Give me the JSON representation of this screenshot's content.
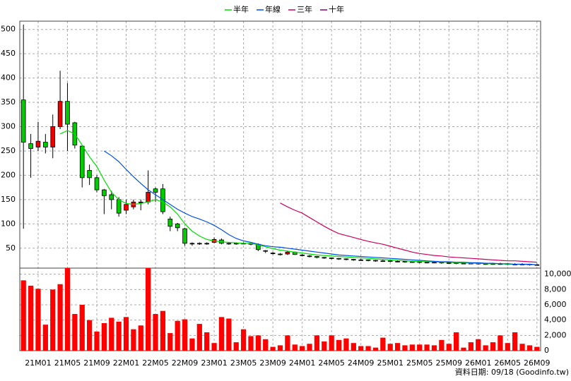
{
  "chart_data": {
    "type": "candlestick",
    "source": "資料日期: 09/18  (Goodinfo.tw)",
    "categories": [
      null,
      null,
      "21M01",
      null,
      null,
      null,
      "21M05",
      null,
      null,
      null,
      "21M09",
      null,
      null,
      null,
      "22M01",
      null,
      null,
      null,
      "22M05",
      null,
      null,
      null,
      "22M09",
      null,
      null,
      null,
      "23M01",
      null,
      null,
      null,
      "23M05",
      null,
      null,
      null,
      "23M09",
      null,
      null,
      null,
      "24M01",
      null,
      null,
      null,
      "24M05",
      null,
      null,
      null,
      "24M09",
      null,
      null,
      null,
      "25M01",
      null,
      null,
      null,
      "25M05",
      null,
      null,
      null,
      "25M09",
      null,
      null,
      null,
      "26M01",
      null,
      null,
      null,
      "26M05",
      null,
      null,
      null,
      "26M09"
    ],
    "open": [
      355,
      265,
      258,
      268,
      258,
      300,
      352,
      308,
      260,
      210,
      195,
      170,
      160,
      150,
      128,
      135,
      145,
      145,
      172,
      172,
      110,
      100,
      90,
      60,
      60,
      60,
      62,
      67,
      60,
      60,
      60,
      60,
      58,
      45,
      40,
      38,
      38,
      42,
      36,
      34,
      33,
      31,
      30,
      29,
      28,
      27,
      26,
      26,
      25,
      24,
      24,
      23,
      23,
      22,
      22,
      21,
      21,
      21,
      20,
      20,
      19,
      19,
      19,
      18,
      18,
      18,
      18,
      17,
      17,
      17,
      16
    ],
    "high": [
      510,
      285,
      310,
      285,
      325,
      415,
      390,
      310,
      262,
      222,
      200,
      172,
      168,
      155,
      150,
      150,
      150,
      210,
      175,
      182,
      115,
      102,
      92,
      62,
      62,
      62,
      72,
      70,
      62,
      62,
      62,
      60,
      60,
      46,
      42,
      40,
      45,
      43,
      38,
      36,
      34,
      32,
      31,
      30,
      29,
      28,
      28,
      27,
      26,
      26,
      25,
      25,
      24,
      24,
      23,
      23,
      23,
      22,
      22,
      21,
      21,
      21,
      20,
      20,
      20,
      20,
      19,
      19,
      19,
      18,
      18
    ],
    "low": [
      90,
      195,
      250,
      245,
      235,
      295,
      250,
      255,
      175,
      180,
      165,
      120,
      130,
      115,
      120,
      130,
      128,
      140,
      145,
      120,
      85,
      85,
      55,
      55,
      57,
      57,
      60,
      58,
      57,
      57,
      58,
      56,
      44,
      40,
      37,
      35,
      36,
      36,
      33,
      31,
      29,
      28,
      27,
      26,
      25,
      24,
      24,
      23,
      22,
      22,
      21,
      21,
      20,
      20,
      19,
      19,
      19,
      18,
      18,
      17,
      17,
      17,
      16,
      16,
      16,
      16,
      15,
      15,
      15,
      14,
      14
    ],
    "close": [
      268,
      255,
      270,
      258,
      300,
      352,
      305,
      262,
      195,
      195,
      170,
      158,
      150,
      122,
      140,
      145,
      145,
      165,
      165,
      125,
      95,
      92,
      60,
      60,
      60,
      60,
      68,
      60,
      60,
      60,
      60,
      58,
      47,
      44,
      40,
      37,
      42,
      37,
      35,
      33,
      31,
      30,
      29,
      28,
      27,
      26,
      26,
      25,
      24,
      24,
      23,
      23,
      22,
      22,
      21,
      21,
      21,
      20,
      20,
      19,
      19,
      19,
      18,
      18,
      18,
      18,
      17,
      17,
      17,
      16,
      16
    ],
    "up_color": "#ee0000",
    "down_color": "#00cc00",
    "ylim": [
      9,
      517
    ],
    "yticks": [
      50,
      100,
      150,
      200,
      250,
      300,
      350,
      400,
      450,
      500
    ],
    "grid": true,
    "series": [
      {
        "name": "半年",
        "color": "#00dd00",
        "values": [
          null,
          null,
          null,
          null,
          null,
          285,
          292,
          285,
          262,
          238,
          218,
          190,
          165,
          150,
          142,
          140,
          142,
          145,
          150,
          145,
          135,
          120,
          100,
          85,
          75,
          68,
          65,
          63,
          62,
          61,
          60,
          60,
          57,
          53,
          49,
          46,
          44,
          42,
          40,
          38,
          36,
          35,
          34,
          33,
          32,
          31,
          30,
          29,
          28,
          27,
          26,
          25,
          24,
          23,
          23,
          22,
          22,
          21,
          21,
          20,
          20,
          19,
          19,
          18,
          18,
          18,
          17,
          17,
          17,
          16,
          16
        ]
      },
      {
        "name": "年線",
        "color": "#0050e0",
        "values": [
          null,
          null,
          null,
          null,
          null,
          null,
          null,
          null,
          null,
          null,
          null,
          250,
          240,
          228,
          212,
          197,
          183,
          170,
          160,
          150,
          140,
          130,
          122,
          115,
          110,
          104,
          97,
          88,
          78,
          70,
          65,
          62,
          58,
          55,
          53,
          52,
          50,
          48,
          46,
          44,
          42,
          40,
          38,
          36,
          35,
          34,
          33,
          32,
          31,
          30,
          29,
          28,
          27,
          26,
          25,
          24,
          23,
          22,
          22,
          21,
          21,
          20,
          20,
          19,
          19,
          18,
          18,
          17,
          17,
          17,
          16
        ]
      },
      {
        "name": "三年",
        "color": "#cc0060",
        "values": [
          null,
          null,
          null,
          null,
          null,
          null,
          null,
          null,
          null,
          null,
          null,
          null,
          null,
          null,
          null,
          null,
          null,
          null,
          null,
          null,
          null,
          null,
          null,
          null,
          null,
          null,
          null,
          null,
          null,
          null,
          null,
          null,
          null,
          null,
          null,
          143,
          135,
          128,
          122,
          113,
          104,
          95,
          87,
          80,
          76,
          72,
          68,
          64,
          61,
          58,
          54,
          50,
          46,
          42,
          39,
          37,
          35,
          34,
          32,
          31,
          30,
          29,
          28,
          27,
          26,
          25,
          24,
          24,
          23,
          22,
          21
        ]
      },
      {
        "name": "十年",
        "color": "#800080",
        "values": [
          null,
          null,
          null,
          null,
          null,
          null,
          null,
          null,
          null,
          null,
          null,
          null,
          null,
          null,
          null,
          null,
          null,
          null,
          null,
          null,
          null,
          null,
          null,
          null,
          null,
          null,
          null,
          null,
          null,
          null,
          null,
          null,
          null,
          null,
          null,
          null,
          null,
          null,
          null,
          null,
          null,
          null,
          null,
          null,
          null,
          null,
          null,
          null,
          null,
          null,
          null,
          null,
          null,
          null,
          null,
          null,
          null,
          null,
          null,
          null,
          null,
          null,
          null,
          null,
          null,
          null,
          null,
          null,
          null,
          null,
          null
        ]
      }
    ],
    "volume": {
      "color": "#ff0000",
      "values": [
        9200,
        8500,
        8100,
        3400,
        8000,
        8700,
        10800,
        4800,
        6000,
        4000,
        2500,
        3600,
        4300,
        3800,
        4400,
        2800,
        3300,
        10800,
        4800,
        5200,
        2300,
        3900,
        4100,
        1600,
        3500,
        2400,
        1000,
        4400,
        4200,
        1100,
        2800,
        1900,
        2000,
        1500,
        500,
        700,
        2000,
        800,
        600,
        900,
        2000,
        1200,
        2000,
        1400,
        1600,
        1000,
        600,
        600,
        400,
        1700,
        900,
        1000,
        700,
        800,
        800,
        800,
        700,
        1400,
        900,
        2400,
        400,
        1100,
        1500,
        700,
        1100,
        2000,
        1000,
        2400,
        900,
        700,
        500
      ],
      "ylim": [
        0,
        10800
      ],
      "yticks": [
        0,
        {
          "value": 2000,
          "label": "2,000"
        },
        {
          "value": 4000,
          "label": "4,000"
        },
        {
          "value": 6000,
          "label": "6,000"
        },
        {
          "value": 8000,
          "label": "8,000"
        },
        {
          "value": 10000,
          "label": "10,000"
        }
      ]
    }
  }
}
